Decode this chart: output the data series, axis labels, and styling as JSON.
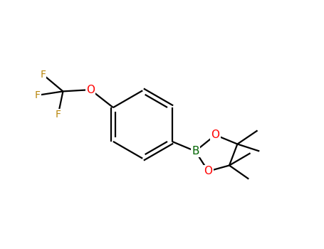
{
  "background_color": "#ffffff",
  "bond_color": "#000000",
  "atom_colors": {
    "F": "#b8860b",
    "O": "#ff0000",
    "B": "#006400",
    "C": "#000000"
  },
  "figsize": [
    4.55,
    3.5
  ],
  "dpi": 100
}
